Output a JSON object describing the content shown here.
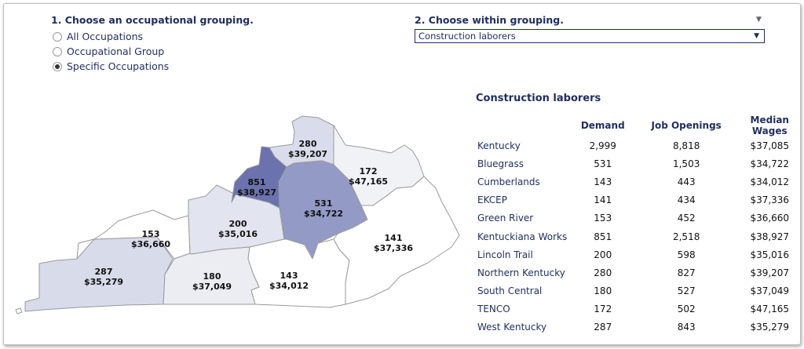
{
  "controls": {
    "grouping_title": "1. Choose an occupational grouping.",
    "options": [
      {
        "label": "All Occupations",
        "checked": false
      },
      {
        "label": "Occupational Group",
        "checked": false
      },
      {
        "label": "Specific Occupations",
        "checked": true
      }
    ],
    "within_title": "2. Choose within grouping.",
    "within_selected": "Construction laborers"
  },
  "map": {
    "regions": [
      {
        "name": "West Kentucky",
        "demand": "287",
        "wage": "$35,279",
        "fill": "#d7dbea"
      },
      {
        "name": "Green River",
        "demand": "153",
        "wage": "$36,660",
        "fill": "#ffffff"
      },
      {
        "name": "Lincoln Trail",
        "demand": "200",
        "wage": "$35,016",
        "fill": "#e2e5ef"
      },
      {
        "name": "South Central",
        "demand": "180",
        "wage": "$37,049",
        "fill": "#ebedf3"
      },
      {
        "name": "Kentuckiana Works",
        "demand": "851",
        "wage": "$38,927",
        "fill": "#6b72ad"
      },
      {
        "name": "Northern Kentucky",
        "demand": "280",
        "wage": "$39,207",
        "fill": "#d9dcea"
      },
      {
        "name": "Bluegrass",
        "demand": "531",
        "wage": "$34,722",
        "fill": "#939ac6"
      },
      {
        "name": "TENCO",
        "demand": "172",
        "wage": "$47,165",
        "fill": "#f1f2f6"
      },
      {
        "name": "Cumberlands",
        "demand": "143",
        "wage": "$34,012",
        "fill": "#ffffff"
      },
      {
        "name": "EKCEP",
        "demand": "141",
        "wage": "$37,336",
        "fill": "#ffffff"
      }
    ]
  },
  "table": {
    "title": "Construction laborers",
    "headers": [
      "Demand",
      "Job Openings",
      "Median Wages"
    ],
    "rows": [
      {
        "region": "Kentucky",
        "demand": "2,999",
        "openings": "8,818",
        "wage": "$37,085"
      },
      {
        "region": "Bluegrass",
        "demand": "531",
        "openings": "1,503",
        "wage": "$34,722"
      },
      {
        "region": "Cumberlands",
        "demand": "143",
        "openings": "443",
        "wage": "$34,012"
      },
      {
        "region": "EKCEP",
        "demand": "141",
        "openings": "434",
        "wage": "$37,336"
      },
      {
        "region": "Green River",
        "demand": "153",
        "openings": "452",
        "wage": "$36,660"
      },
      {
        "region": "Kentuckiana Works",
        "demand": "851",
        "openings": "2,518",
        "wage": "$38,927"
      },
      {
        "region": "Lincoln Trail",
        "demand": "200",
        "openings": "598",
        "wage": "$35,016"
      },
      {
        "region": "Northern Kentucky",
        "demand": "280",
        "openings": "827",
        "wage": "$39,207"
      },
      {
        "region": "South Central",
        "demand": "180",
        "openings": "527",
        "wage": "$37,049"
      },
      {
        "region": "TENCO",
        "demand": "172",
        "openings": "502",
        "wage": "$47,165"
      },
      {
        "region": "West Kentucky",
        "demand": "287",
        "openings": "843",
        "wage": "$35,279"
      }
    ]
  }
}
